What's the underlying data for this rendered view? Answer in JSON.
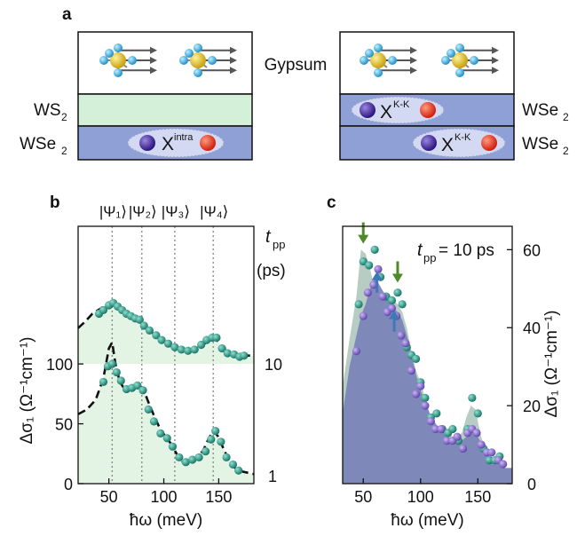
{
  "panel_a": {
    "letter": "a",
    "gypsum": "Gypsum",
    "left": {
      "layers": [
        {
          "name": "WS",
          "sub": "2",
          "color": "#d4f0d8"
        },
        {
          "name": "WSe",
          "sub": "2",
          "color": "#8ea0d6"
        }
      ],
      "exciton": {
        "base": "X",
        "sup": "intra"
      }
    },
    "right": {
      "layers": [
        {
          "name": "WSe",
          "sub": "2",
          "color": "#8ea0d6"
        },
        {
          "name": "WSe",
          "sub": "2",
          "color": "#8ea0d6"
        }
      ],
      "excitons": [
        {
          "base": "X",
          "sup": "K-K"
        },
        {
          "base": "X",
          "sup": "K-K"
        }
      ]
    },
    "colors": {
      "electron": "#e6321e",
      "hole": "#4a2f9e",
      "gypsum_ca": "#e8c62a",
      "gypsum_o": "#42b4e6"
    }
  },
  "chart_data": [
    {
      "panel": "b",
      "type": "scatter",
      "state_labels": [
        "|Ψ₁⟩",
        "|Ψ₂⟩",
        "|Ψ₃⟩",
        "|Ψ₄⟩"
      ],
      "state_energies": [
        53,
        80,
        110,
        145
      ],
      "xlabel": "ħω (meV)",
      "ylabel": "Δσ₁ (Ω⁻¹cm⁻¹)",
      "xlim": [
        22,
        182
      ],
      "ylim": [
        0,
        215
      ],
      "xticks": [
        50,
        100,
        150
      ],
      "yticks": [
        0,
        50,
        100
      ],
      "right_title": {
        "t": "t",
        "sub": "pp",
        "unit": "(ps)"
      },
      "series": [
        {
          "name": "1",
          "offset": 0,
          "points": [
            [
              45,
              85
            ],
            [
              49,
              98
            ],
            [
              53,
              100
            ],
            [
              57,
              93
            ],
            [
              61,
              86
            ],
            [
              66,
              79
            ],
            [
              71,
              80
            ],
            [
              76,
              82
            ],
            [
              81,
              78
            ],
            [
              86,
              62
            ],
            [
              91,
              52
            ],
            [
              97,
              42
            ],
            [
              103,
              38
            ],
            [
              108,
              31
            ],
            [
              114,
              22
            ],
            [
              120,
              18
            ],
            [
              126,
              20
            ],
            [
              132,
              22
            ],
            [
              138,
              27
            ],
            [
              143,
              37
            ],
            [
              147,
              44
            ],
            [
              152,
              35
            ],
            [
              157,
              22
            ],
            [
              163,
              16
            ],
            [
              168,
              11
            ]
          ],
          "fit": [
            [
              22,
              58
            ],
            [
              30,
              62
            ],
            [
              38,
              70
            ],
            [
              45,
              88
            ],
            [
              50,
              113
            ],
            [
              53,
              118
            ],
            [
              56,
              100
            ],
            [
              60,
              85
            ],
            [
              65,
              78
            ],
            [
              71,
              79
            ],
            [
              76,
              82
            ],
            [
              81,
              80
            ],
            [
              86,
              68
            ],
            [
              91,
              57
            ],
            [
              96,
              47
            ],
            [
              101,
              40
            ],
            [
              106,
              34
            ],
            [
              111,
              26
            ],
            [
              116,
              19
            ],
            [
              121,
              16
            ],
            [
              126,
              18
            ],
            [
              131,
              22
            ],
            [
              136,
              28
            ],
            [
              141,
              38
            ],
            [
              145,
              44
            ],
            [
              149,
              40
            ],
            [
              154,
              30
            ],
            [
              159,
              20
            ],
            [
              165,
              13
            ],
            [
              172,
              10
            ],
            [
              182,
              8
            ]
          ]
        },
        {
          "name": "10",
          "offset": 100,
          "points": [
            [
              41,
              42
            ],
            [
              45,
              45
            ],
            [
              50,
              49
            ],
            [
              54,
              51
            ],
            [
              58,
              48
            ],
            [
              62,
              45
            ],
            [
              66,
              42
            ],
            [
              70,
              40
            ],
            [
              74,
              38
            ],
            [
              78,
              37
            ],
            [
              82,
              32
            ],
            [
              87,
              28
            ],
            [
              93,
              24
            ],
            [
              98,
              20
            ],
            [
              104,
              17
            ],
            [
              110,
              14
            ],
            [
              116,
              12
            ],
            [
              122,
              11
            ],
            [
              128,
              12
            ],
            [
              134,
              16
            ],
            [
              139,
              20
            ],
            [
              144,
              22
            ],
            [
              148,
              22
            ],
            [
              153,
              13
            ],
            [
              158,
              9
            ],
            [
              164,
              8
            ],
            [
              169,
              6
            ],
            [
              173,
              7
            ]
          ],
          "fit": [
            [
              22,
              30
            ],
            [
              28,
              35
            ],
            [
              35,
              42
            ],
            [
              42,
              46
            ],
            [
              48,
              50
            ],
            [
              53,
              51
            ],
            [
              58,
              48
            ],
            [
              65,
              42
            ],
            [
              72,
              38
            ],
            [
              78,
              35
            ],
            [
              85,
              30
            ],
            [
              92,
              24
            ],
            [
              100,
              19
            ],
            [
              108,
              14
            ],
            [
              115,
              12
            ],
            [
              122,
              11
            ],
            [
              130,
              12
            ],
            [
              136,
              16
            ],
            [
              141,
              20
            ],
            [
              145,
              22
            ],
            [
              149,
              19
            ],
            [
              154,
              13
            ],
            [
              160,
              9
            ],
            [
              168,
              8
            ],
            [
              176,
              7
            ],
            [
              182,
              7
            ]
          ]
        }
      ]
    },
    {
      "panel": "c",
      "type": "scatter",
      "annotation": {
        "t": "t",
        "sub": "pp",
        "rest": " = 10 ps"
      },
      "xlabel": "ħω (meV)",
      "ylabel": "Δσ₁ (Ω⁻¹cm⁻¹)",
      "xlim": [
        32,
        180
      ],
      "ylim": [
        0,
        66
      ],
      "xticks": [
        50,
        100,
        150
      ],
      "yticks": [
        0,
        20,
        40,
        60
      ],
      "shade_gray": [
        [
          32,
          25
        ],
        [
          38,
          37
        ],
        [
          44,
          48
        ],
        [
          48,
          60
        ],
        [
          52,
          59
        ],
        [
          56,
          55
        ],
        [
          60,
          50
        ],
        [
          64,
          49
        ],
        [
          68,
          49
        ],
        [
          72,
          48
        ],
        [
          76,
          47
        ],
        [
          80,
          46
        ],
        [
          84,
          44
        ],
        [
          88,
          40
        ],
        [
          92,
          34
        ],
        [
          96,
          29
        ],
        [
          100,
          26
        ],
        [
          104,
          22
        ],
        [
          108,
          18
        ],
        [
          112,
          16
        ],
        [
          116,
          14
        ],
        [
          120,
          13
        ],
        [
          124,
          13
        ],
        [
          128,
          12
        ],
        [
          132,
          12
        ],
        [
          136,
          13
        ],
        [
          140,
          17
        ],
        [
          144,
          20
        ],
        [
          148,
          19
        ],
        [
          152,
          13
        ],
        [
          156,
          9
        ],
        [
          160,
          7
        ],
        [
          166,
          5
        ],
        [
          172,
          4
        ],
        [
          180,
          4
        ]
      ],
      "shade_purple": [
        [
          32,
          18
        ],
        [
          38,
          30
        ],
        [
          44,
          38
        ],
        [
          48,
          43
        ],
        [
          52,
          46
        ],
        [
          56,
          50
        ],
        [
          60,
          53
        ],
        [
          64,
          51
        ],
        [
          68,
          49
        ],
        [
          72,
          47
        ],
        [
          76,
          45
        ],
        [
          80,
          44
        ],
        [
          84,
          42
        ],
        [
          88,
          38
        ],
        [
          92,
          33
        ],
        [
          96,
          28
        ],
        [
          100,
          24
        ],
        [
          104,
          21
        ],
        [
          108,
          18
        ],
        [
          112,
          16
        ],
        [
          116,
          14
        ],
        [
          120,
          13
        ],
        [
          124,
          12
        ],
        [
          128,
          11
        ],
        [
          132,
          11
        ],
        [
          136,
          11
        ],
        [
          140,
          12
        ],
        [
          144,
          14
        ],
        [
          148,
          13
        ],
        [
          152,
          11
        ],
        [
          156,
          9
        ],
        [
          160,
          7
        ],
        [
          168,
          5
        ],
        [
          174,
          4
        ],
        [
          180,
          4
        ]
      ],
      "series": [
        {
          "name": "",
          "color": "#1e8c7a",
          "points": [
            [
              46,
              46
            ],
            [
              50,
              57
            ],
            [
              55,
              56
            ],
            [
              60,
              60
            ],
            [
              65,
              53
            ],
            [
              70,
              48
            ],
            [
              75,
              47
            ],
            [
              80,
              49
            ],
            [
              84,
              46
            ],
            [
              88,
              35
            ],
            [
              92,
              33
            ],
            [
              96,
              32
            ],
            [
              100,
              26
            ],
            [
              104,
              22
            ],
            [
              109,
              17
            ],
            [
              114,
              18
            ],
            [
              119,
              14
            ],
            [
              124,
              13
            ],
            [
              128,
              14
            ],
            [
              133,
              11
            ],
            [
              137,
              9
            ],
            [
              141,
              14
            ],
            [
              145,
              22
            ],
            [
              150,
              18
            ],
            [
              155,
              9
            ],
            [
              160,
              6
            ],
            [
              165,
              6
            ],
            [
              169,
              7
            ]
          ]
        },
        {
          "name": "",
          "color": "#7b5fc2",
          "points": [
            [
              44,
              34
            ],
            [
              50,
              43
            ],
            [
              54,
              49
            ],
            [
              59,
              51
            ],
            [
              63,
              55
            ],
            [
              67,
              48
            ],
            [
              71,
              44
            ],
            [
              75,
              45
            ],
            [
              79,
              43
            ],
            [
              83,
              38
            ],
            [
              87,
              36
            ],
            [
              92,
              29
            ],
            [
              96,
              23
            ],
            [
              100,
              25
            ],
            [
              104,
              20
            ],
            [
              109,
              16
            ],
            [
              113,
              14
            ],
            [
              118,
              14
            ],
            [
              123,
              11
            ],
            [
              128,
              11
            ],
            [
              132,
              12
            ],
            [
              137,
              9
            ],
            [
              141,
              13
            ],
            [
              145,
              14
            ],
            [
              149,
              13
            ],
            [
              153,
              10
            ],
            [
              158,
              8
            ],
            [
              162,
              8
            ],
            [
              168,
              6
            ],
            [
              172,
              5
            ]
          ]
        }
      ],
      "arrows": [
        {
          "color": "#4e8a2a",
          "x": 50,
          "y": 62,
          "dir": "down"
        },
        {
          "color": "#4e8a2a",
          "x": 80,
          "y": 52,
          "dir": "down"
        },
        {
          "color": "#3d78b8",
          "x": 62,
          "y": 54,
          "dir": "up"
        },
        {
          "color": "#3d78b8",
          "x": 77,
          "y": 44,
          "dir": "up"
        }
      ]
    }
  ],
  "panel_letters": {
    "b": "b",
    "c": "c"
  }
}
